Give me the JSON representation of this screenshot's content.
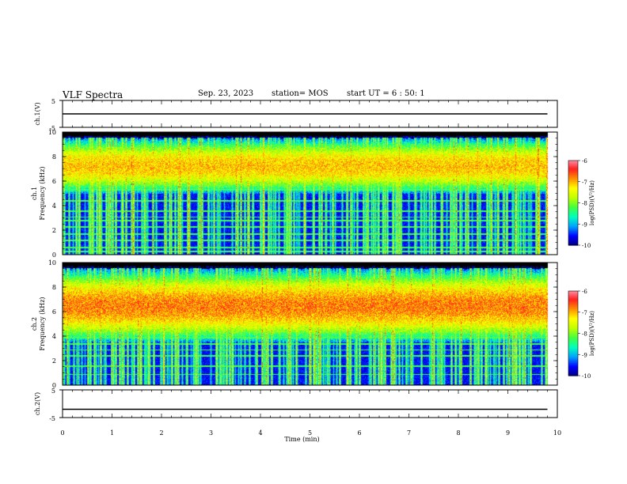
{
  "header": {
    "title": "VLF Spectra",
    "date": "Sep. 23, 2023",
    "station": "station= MOS",
    "start": "start  UT =  6 : 50: 1"
  },
  "colors": {
    "spectral": [
      "#00007a",
      "#0000ff",
      "#00a0ff",
      "#00ffc0",
      "#40ff40",
      "#c0ff00",
      "#ffff00",
      "#ff9000",
      "#ff2020",
      "#ff9ab0",
      "#ffffff"
    ]
  },
  "chart_data": [
    {
      "type": "line",
      "name": "ch1-waveform",
      "ylabel": "ch.1(V)",
      "ylim": [
        -5,
        5
      ],
      "ytick_labels": [
        "5",
        "-5"
      ],
      "series": [
        {
          "x": [
            0,
            9.8
          ],
          "y": [
            0,
            0
          ]
        }
      ]
    },
    {
      "type": "heatmap",
      "name": "ch1-spectrogram",
      "ylabel": "ch.1\nFrequency (kHz)",
      "xlim": [
        0,
        10
      ],
      "ylim": [
        0,
        10
      ],
      "ytick_labels": [
        "0",
        "2",
        "4",
        "6",
        "8",
        "10"
      ],
      "data_end_min": 9.8,
      "colorbar": {
        "label": "log(PSD)(V²/Hz)",
        "range": [
          -10,
          -6
        ],
        "tick_labels": [
          "-6",
          "-7",
          "-8",
          "-9",
          "-10"
        ]
      },
      "noise_floor_log_psd": -10,
      "emission_band_khz": [
        5,
        9.5
      ],
      "emission_peak_log_psd": -7,
      "persistent_lines_khz": [
        0.3,
        0.6,
        1.2,
        1.7,
        2.3,
        2.8,
        3.1,
        3.6,
        4.4,
        5.3,
        6.3
      ]
    },
    {
      "type": "heatmap",
      "name": "ch2-spectrogram",
      "ylabel": "ch.2\nFrequency (kHz)",
      "xlim": [
        0,
        10
      ],
      "ylim": [
        0,
        10
      ],
      "ytick_labels": [
        "0",
        "2",
        "4",
        "6",
        "8",
        "10"
      ],
      "data_end_min": 9.8,
      "colorbar": {
        "label": "log(PSD)(V²/Hz)",
        "range": [
          -10,
          -6
        ],
        "tick_labels": [
          "-6",
          "-7",
          "-8",
          "-9",
          "-10"
        ]
      },
      "noise_floor_log_psd": -10,
      "emission_band_khz": [
        3.5,
        9.5
      ],
      "emission_peak_log_psd": -6.6,
      "persistent_lines_khz": [
        0.9,
        1.6,
        2.4,
        2.9,
        3.4,
        3.9,
        4.4
      ]
    },
    {
      "type": "line",
      "name": "ch2-waveform",
      "ylabel": "ch.2(V)",
      "ylim": [
        -5,
        5
      ],
      "ytick_labels": [
        "5",
        "-5"
      ],
      "xlabel": "Time (min)",
      "xlim": [
        0,
        10
      ],
      "xtick_labels": [
        "0",
        "1",
        "2",
        "3",
        "4",
        "5",
        "6",
        "7",
        "8",
        "9",
        "10"
      ],
      "series": [
        {
          "x": [
            0,
            9.8
          ],
          "y": [
            -2,
            -2
          ]
        }
      ]
    }
  ]
}
